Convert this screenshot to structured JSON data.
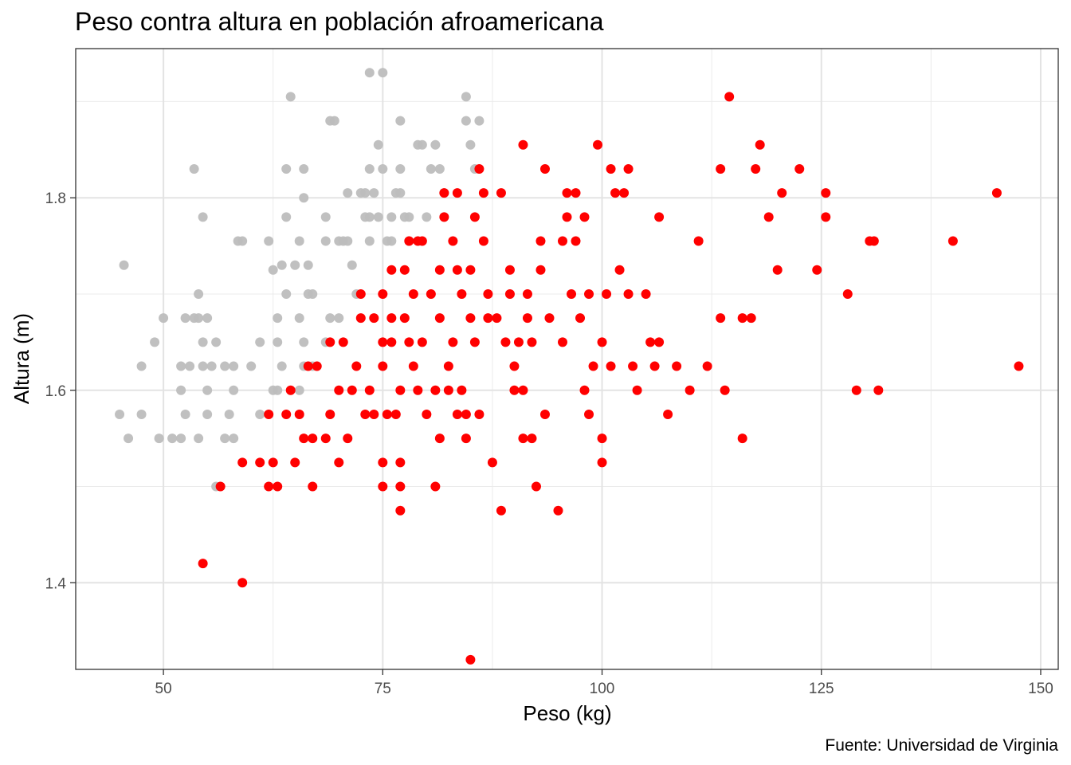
{
  "chart_data": {
    "type": "scatter",
    "title": "Peso contra altura en población afroamericana",
    "xlabel": "Peso (kg)",
    "ylabel": "Altura (m)",
    "caption": "Fuente: Universidad de Virginia",
    "xlim": [
      40,
      152
    ],
    "ylim": [
      1.31,
      1.955
    ],
    "x_ticks": [
      50,
      75,
      100,
      125,
      150
    ],
    "x_tick_labels": [
      "50",
      "75",
      "100",
      "125",
      "150"
    ],
    "y_ticks": [
      1.4,
      1.6,
      1.8
    ],
    "y_tick_labels": [
      "1.4",
      "1.6",
      "1.8"
    ],
    "grid": true,
    "legend": "none",
    "series": [
      {
        "color": "#bdbdbd",
        "points": [
          [
            45,
            1.575
          ],
          [
            45.5,
            1.73
          ],
          [
            46,
            1.55
          ],
          [
            47.5,
            1.625
          ],
          [
            47.5,
            1.575
          ],
          [
            49,
            1.65
          ],
          [
            49.5,
            1.55
          ],
          [
            50,
            1.675
          ],
          [
            51,
            1.55
          ],
          [
            52,
            1.625
          ],
          [
            52,
            1.6
          ],
          [
            52,
            1.55
          ],
          [
            52.5,
            1.675
          ],
          [
            52.5,
            1.575
          ],
          [
            53,
            1.625
          ],
          [
            53.5,
            1.83
          ],
          [
            53.5,
            1.675
          ],
          [
            54,
            1.7
          ],
          [
            54,
            1.675
          ],
          [
            54,
            1.55
          ],
          [
            54.5,
            1.78
          ],
          [
            54.5,
            1.65
          ],
          [
            54.5,
            1.625
          ],
          [
            55,
            1.575
          ],
          [
            55,
            1.6
          ],
          [
            55,
            1.675
          ],
          [
            55.5,
            1.625
          ],
          [
            56,
            1.5
          ],
          [
            56,
            1.65
          ],
          [
            57,
            1.625
          ],
          [
            57,
            1.55
          ],
          [
            57.5,
            1.575
          ],
          [
            58,
            1.6
          ],
          [
            58,
            1.55
          ],
          [
            58,
            1.625
          ],
          [
            58.5,
            1.755
          ],
          [
            59,
            1.755
          ],
          [
            60,
            1.625
          ],
          [
            61,
            1.65
          ],
          [
            61,
            1.575
          ],
          [
            62,
            1.755
          ],
          [
            62.5,
            1.6
          ],
          [
            62.5,
            1.725
          ],
          [
            63,
            1.675
          ],
          [
            63,
            1.65
          ],
          [
            63,
            1.6
          ],
          [
            63.5,
            1.73
          ],
          [
            63.5,
            1.625
          ],
          [
            64,
            1.78
          ],
          [
            64,
            1.7
          ],
          [
            64,
            1.83
          ],
          [
            64.5,
            1.905
          ],
          [
            65,
            1.73
          ],
          [
            65.5,
            1.755
          ],
          [
            65.5,
            1.6
          ],
          [
            65.5,
            1.675
          ],
          [
            66,
            1.8
          ],
          [
            66,
            1.83
          ],
          [
            66,
            1.65
          ],
          [
            66,
            1.625
          ],
          [
            66.5,
            1.73
          ],
          [
            66.5,
            1.7
          ],
          [
            67,
            1.7
          ],
          [
            67,
            1.625
          ],
          [
            68.5,
            1.78
          ],
          [
            68.5,
            1.755
          ],
          [
            68.5,
            1.65
          ],
          [
            69,
            1.88
          ],
          [
            69,
            1.675
          ],
          [
            69.5,
            1.88
          ],
          [
            70,
            1.755
          ],
          [
            70,
            1.675
          ],
          [
            70.5,
            1.755
          ],
          [
            71,
            1.755
          ],
          [
            71,
            1.805
          ],
          [
            71.5,
            1.73
          ],
          [
            72,
            1.7
          ],
          [
            72.5,
            1.805
          ],
          [
            73,
            1.805
          ],
          [
            73,
            1.78
          ],
          [
            73.5,
            1.78
          ],
          [
            73.5,
            1.755
          ],
          [
            73.5,
            1.93
          ],
          [
            73.5,
            1.83
          ],
          [
            74,
            1.805
          ],
          [
            74.5,
            1.78
          ],
          [
            74.5,
            1.855
          ],
          [
            75,
            1.93
          ],
          [
            75,
            1.83
          ],
          [
            75.5,
            1.755
          ],
          [
            76,
            1.755
          ],
          [
            76,
            1.78
          ],
          [
            76.5,
            1.805
          ],
          [
            77,
            1.805
          ],
          [
            77,
            1.83
          ],
          [
            77,
            1.88
          ],
          [
            77.5,
            1.78
          ],
          [
            78,
            1.78
          ],
          [
            78,
            1.755
          ],
          [
            79,
            1.855
          ],
          [
            79.5,
            1.855
          ],
          [
            80,
            1.78
          ],
          [
            80.5,
            1.83
          ],
          [
            81,
            1.855
          ],
          [
            81.5,
            1.83
          ],
          [
            82,
            1.805
          ],
          [
            82,
            1.78
          ],
          [
            84.5,
            1.88
          ],
          [
            84.5,
            1.905
          ],
          [
            85,
            1.855
          ],
          [
            85.5,
            1.83
          ],
          [
            86,
            1.88
          ]
        ]
      },
      {
        "color": "#ff0000",
        "points": [
          [
            54.5,
            1.42
          ],
          [
            59,
            1.4
          ],
          [
            56.5,
            1.5
          ],
          [
            59,
            1.525
          ],
          [
            61,
            1.525
          ],
          [
            62,
            1.5
          ],
          [
            62.5,
            1.525
          ],
          [
            63,
            1.5
          ],
          [
            62,
            1.575
          ],
          [
            64,
            1.575
          ],
          [
            64.5,
            1.6
          ],
          [
            65,
            1.525
          ],
          [
            65.5,
            1.575
          ],
          [
            66,
            1.55
          ],
          [
            66.5,
            1.625
          ],
          [
            67,
            1.55
          ],
          [
            67,
            1.5
          ],
          [
            67.5,
            1.625
          ],
          [
            68.5,
            1.55
          ],
          [
            69,
            1.575
          ],
          [
            69,
            1.65
          ],
          [
            70,
            1.6
          ],
          [
            70,
            1.525
          ],
          [
            70.5,
            1.65
          ],
          [
            71,
            1.55
          ],
          [
            71.5,
            1.6
          ],
          [
            72,
            1.625
          ],
          [
            72.5,
            1.675
          ],
          [
            72.5,
            1.7
          ],
          [
            73,
            1.575
          ],
          [
            73.5,
            1.6
          ],
          [
            74,
            1.675
          ],
          [
            74,
            1.575
          ],
          [
            75,
            1.5
          ],
          [
            75,
            1.525
          ],
          [
            75,
            1.625
          ],
          [
            75,
            1.65
          ],
          [
            75,
            1.7
          ],
          [
            75.5,
            1.575
          ],
          [
            76,
            1.725
          ],
          [
            76,
            1.675
          ],
          [
            76,
            1.65
          ],
          [
            76.5,
            1.575
          ],
          [
            77,
            1.475
          ],
          [
            77,
            1.5
          ],
          [
            77,
            1.525
          ],
          [
            77,
            1.6
          ],
          [
            77.5,
            1.725
          ],
          [
            77.5,
            1.675
          ],
          [
            78,
            1.755
          ],
          [
            78,
            1.65
          ],
          [
            78.5,
            1.7
          ],
          [
            78.5,
            1.625
          ],
          [
            79,
            1.755
          ],
          [
            79,
            1.6
          ],
          [
            79.5,
            1.755
          ],
          [
            79.5,
            1.65
          ],
          [
            80,
            1.575
          ],
          [
            80.5,
            1.7
          ],
          [
            81,
            1.5
          ],
          [
            81,
            1.6
          ],
          [
            81.5,
            1.725
          ],
          [
            81.5,
            1.675
          ],
          [
            81.5,
            1.55
          ],
          [
            82,
            1.78
          ],
          [
            82,
            1.805
          ],
          [
            82.5,
            1.625
          ],
          [
            82.5,
            1.6
          ],
          [
            83,
            1.755
          ],
          [
            83,
            1.65
          ],
          [
            83.5,
            1.805
          ],
          [
            83.5,
            1.725
          ],
          [
            83.5,
            1.575
          ],
          [
            84,
            1.7
          ],
          [
            84,
            1.6
          ],
          [
            84.5,
            1.575
          ],
          [
            84.5,
            1.55
          ],
          [
            85,
            1.725
          ],
          [
            85,
            1.675
          ],
          [
            85,
            1.32
          ],
          [
            85.5,
            1.65
          ],
          [
            85.5,
            1.78
          ],
          [
            86,
            1.83
          ],
          [
            86,
            1.575
          ],
          [
            86.5,
            1.805
          ],
          [
            86.5,
            1.755
          ],
          [
            87,
            1.7
          ],
          [
            87,
            1.675
          ],
          [
            87.5,
            1.525
          ],
          [
            88,
            1.675
          ],
          [
            88.5,
            1.805
          ],
          [
            88.5,
            1.475
          ],
          [
            89,
            1.65
          ],
          [
            89.5,
            1.725
          ],
          [
            89.5,
            1.7
          ],
          [
            90,
            1.6
          ],
          [
            90,
            1.625
          ],
          [
            90.5,
            1.65
          ],
          [
            91,
            1.6
          ],
          [
            91,
            1.55
          ],
          [
            91,
            1.855
          ],
          [
            91.5,
            1.7
          ],
          [
            91.5,
            1.675
          ],
          [
            92,
            1.65
          ],
          [
            92,
            1.55
          ],
          [
            92.5,
            1.5
          ],
          [
            93,
            1.755
          ],
          [
            93,
            1.725
          ],
          [
            93.5,
            1.83
          ],
          [
            93.5,
            1.575
          ],
          [
            94,
            1.675
          ],
          [
            95,
            1.475
          ],
          [
            95.5,
            1.755
          ],
          [
            95.5,
            1.65
          ],
          [
            96,
            1.805
          ],
          [
            96,
            1.78
          ],
          [
            96.5,
            1.7
          ],
          [
            97,
            1.805
          ],
          [
            97,
            1.755
          ],
          [
            97.5,
            1.675
          ],
          [
            98,
            1.78
          ],
          [
            98,
            1.6
          ],
          [
            98.5,
            1.7
          ],
          [
            98.5,
            1.575
          ],
          [
            99,
            1.625
          ],
          [
            99.5,
            1.855
          ],
          [
            100,
            1.65
          ],
          [
            100,
            1.55
          ],
          [
            100,
            1.525
          ],
          [
            100.5,
            1.7
          ],
          [
            101,
            1.83
          ],
          [
            101,
            1.625
          ],
          [
            101.5,
            1.805
          ],
          [
            102,
            1.725
          ],
          [
            102.5,
            1.805
          ],
          [
            103,
            1.83
          ],
          [
            103,
            1.7
          ],
          [
            103.5,
            1.625
          ],
          [
            104,
            1.6
          ],
          [
            105,
            1.7
          ],
          [
            105.5,
            1.65
          ],
          [
            106,
            1.625
          ],
          [
            106.5,
            1.65
          ],
          [
            106.5,
            1.78
          ],
          [
            107.5,
            1.575
          ],
          [
            108.5,
            1.625
          ],
          [
            110,
            1.6
          ],
          [
            111,
            1.755
          ],
          [
            112,
            1.625
          ],
          [
            113.5,
            1.83
          ],
          [
            113.5,
            1.675
          ],
          [
            114,
            1.6
          ],
          [
            114.5,
            1.905
          ],
          [
            116,
            1.675
          ],
          [
            116,
            1.55
          ],
          [
            117,
            1.675
          ],
          [
            117.5,
            1.83
          ],
          [
            118,
            1.855
          ],
          [
            119,
            1.78
          ],
          [
            120,
            1.725
          ],
          [
            120.5,
            1.805
          ],
          [
            122.5,
            1.83
          ],
          [
            124.5,
            1.725
          ],
          [
            125.5,
            1.805
          ],
          [
            125.5,
            1.78
          ],
          [
            128,
            1.7
          ],
          [
            129,
            1.6
          ],
          [
            130.5,
            1.755
          ],
          [
            131,
            1.755
          ],
          [
            131.5,
            1.6
          ],
          [
            140,
            1.755
          ],
          [
            145,
            1.805
          ],
          [
            147.5,
            1.625
          ]
        ]
      }
    ]
  }
}
